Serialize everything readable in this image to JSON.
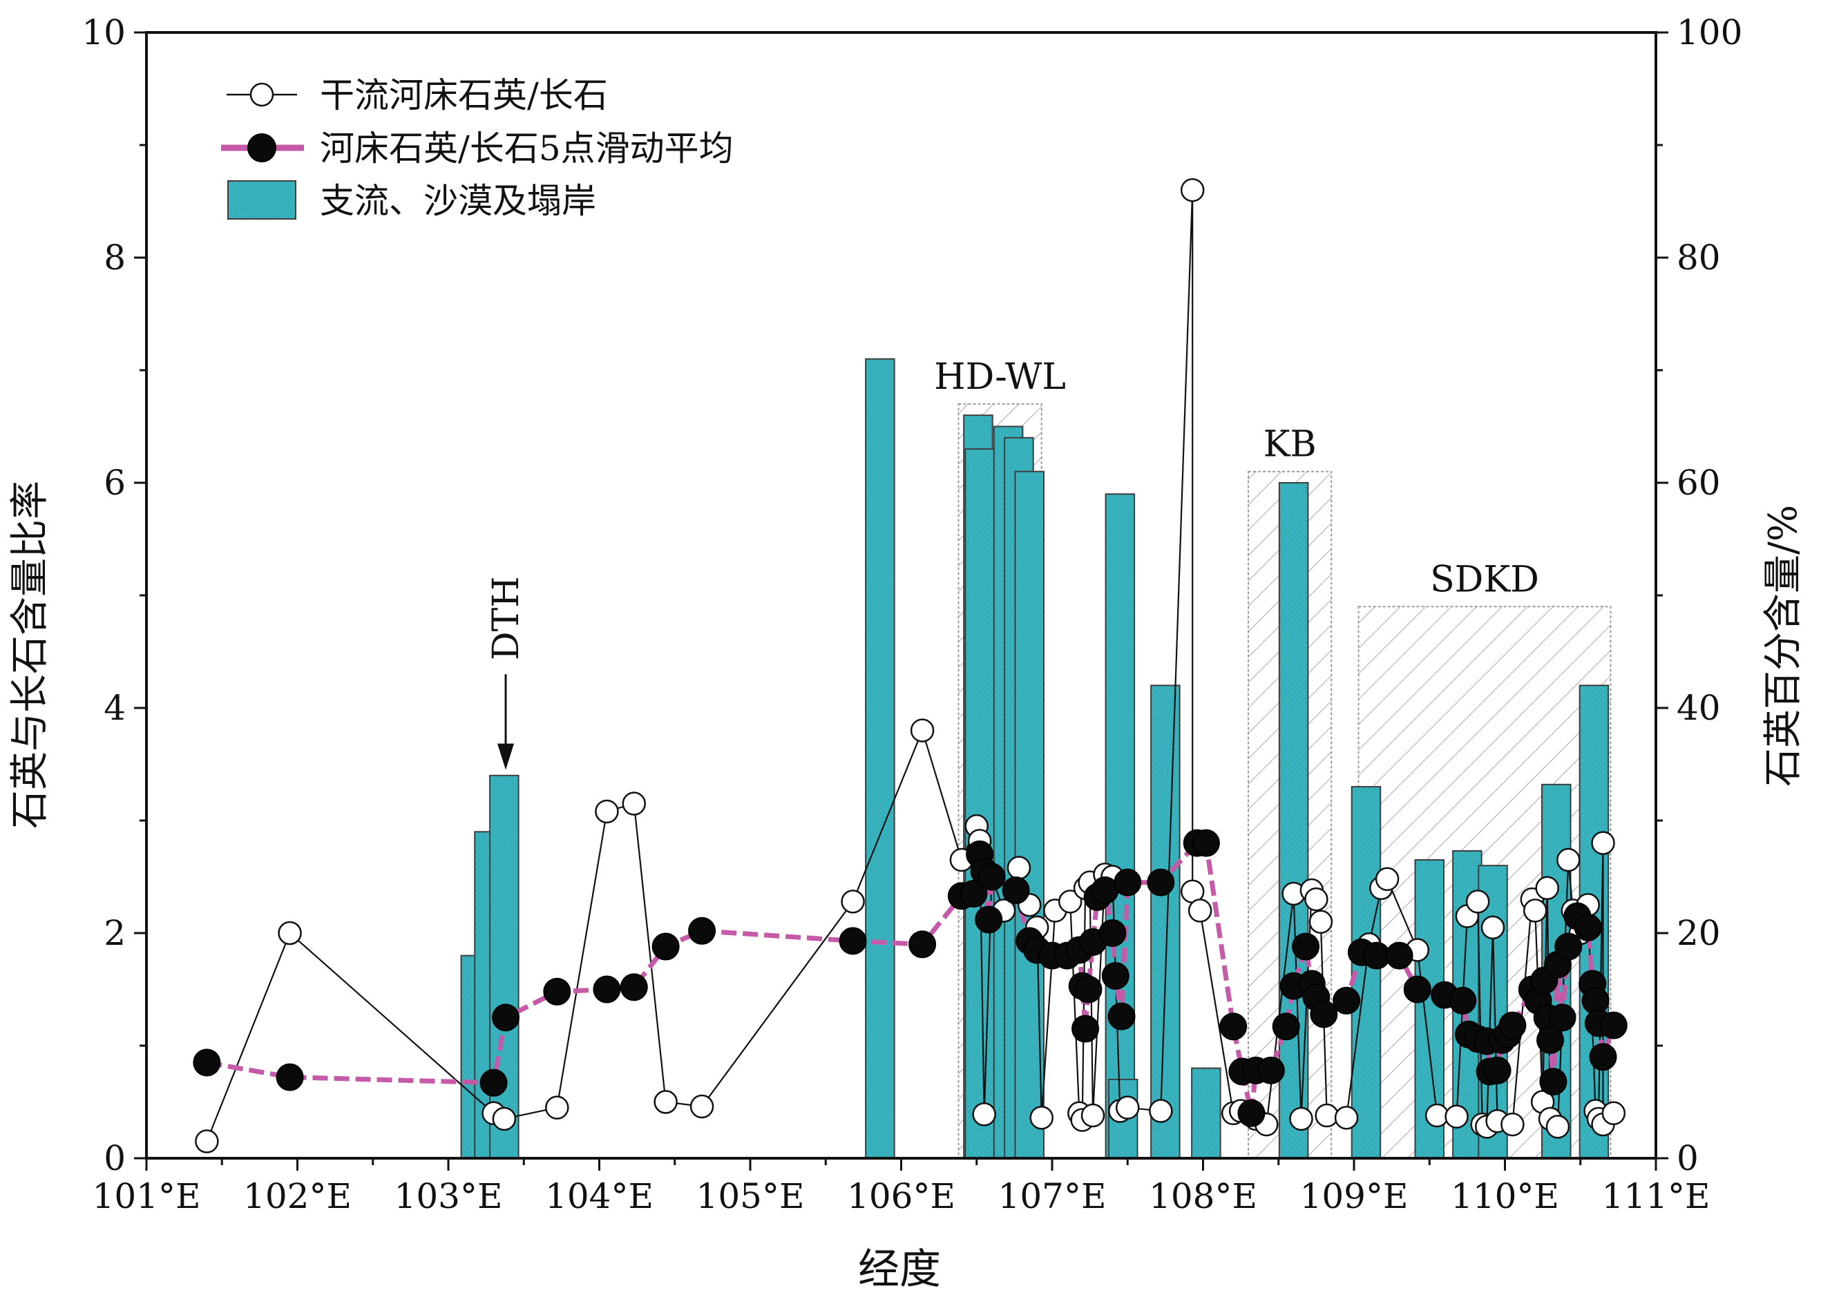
{
  "chart_data": {
    "type": "bar+line+scatter",
    "xlabel": "经度",
    "ylabel_left": "石英与长石含量比率",
    "ylabel_right": "石英百分含量/%",
    "xlim": [
      101,
      111
    ],
    "ylim_left": [
      0,
      10
    ],
    "ylim_right": [
      0,
      100
    ],
    "x_ticks": [
      101,
      102,
      103,
      104,
      105,
      106,
      107,
      108,
      109,
      110,
      111
    ],
    "x_tick_labels": [
      "101°E",
      "102°E",
      "103°E",
      "104°E",
      "105°E",
      "106°E",
      "107°E",
      "108°E",
      "109°E",
      "110°E",
      "111°E"
    ],
    "y_left_ticks": [
      0,
      2,
      4,
      6,
      8,
      10
    ],
    "y_left_tick_labels": [
      "0",
      "2",
      "4",
      "6",
      "8",
      "10"
    ],
    "y_right_ticks": [
      0,
      20,
      40,
      60,
      80,
      100
    ],
    "y_right_tick_labels": [
      "0",
      "20",
      "40",
      "60",
      "80",
      "100"
    ],
    "legend": {
      "placement": "top-left",
      "items": [
        {
          "label": "干流河床石英/长石",
          "kind": "open-circle-line"
        },
        {
          "label": "河床石英/长石5点滑动平均",
          "kind": "filled-circle-magenta-line"
        },
        {
          "label": "支流、沙漠及塌岸",
          "kind": "teal-bar"
        }
      ]
    },
    "colors": {
      "bar_fill": "#38b3bd",
      "bar_edge": "#3d3d3d",
      "moving_avg_line": "#c45aa8",
      "marker_filled": "#0a0a0a",
      "marker_open_fill": "#ffffff",
      "marker_edge": "#111111",
      "zone_hatch": "#9a9a9a"
    },
    "bars": {
      "name": "支流、沙漠及塌岸",
      "axis": "right",
      "width_deg": 0.19,
      "items": [
        {
          "x": 103.18,
          "value": 18
        },
        {
          "x": 103.27,
          "value": 29
        },
        {
          "x": 103.37,
          "value": 34
        },
        {
          "x": 105.86,
          "value": 71
        },
        {
          "x": 106.51,
          "value": 66
        },
        {
          "x": 106.52,
          "value": 63
        },
        {
          "x": 106.71,
          "value": 65
        },
        {
          "x": 106.78,
          "value": 64
        },
        {
          "x": 106.85,
          "value": 61
        },
        {
          "x": 107.45,
          "value": 59
        },
        {
          "x": 107.47,
          "value": 7
        },
        {
          "x": 107.75,
          "value": 42
        },
        {
          "x": 108.02,
          "value": 8
        },
        {
          "x": 108.6,
          "value": 60
        },
        {
          "x": 109.08,
          "value": 33
        },
        {
          "x": 109.5,
          "value": 26.5
        },
        {
          "x": 109.75,
          "value": 27.3
        },
        {
          "x": 109.92,
          "value": 26
        },
        {
          "x": 110.34,
          "value": 33.2
        },
        {
          "x": 110.59,
          "value": 42
        }
      ]
    },
    "zones": [
      {
        "label": "HD-WL",
        "x0": 106.38,
        "x1": 106.93,
        "top": 6.7
      },
      {
        "label": "KB",
        "x0": 108.3,
        "x1": 108.85,
        "top": 6.1
      },
      {
        "label": "SDKD",
        "x0": 109.03,
        "x1": 110.7,
        "top": 4.9
      }
    ],
    "annotations": [
      {
        "label": "DTH",
        "x": 103.38,
        "y_arrow_tip": 3.45,
        "y_arrow_tail": 4.3
      }
    ],
    "series": [
      {
        "name": "干流河床石英/长石",
        "axis": "left",
        "marker": "open-circle",
        "points": [
          [
            101.4,
            0.15
          ],
          [
            101.95,
            2.0
          ],
          [
            103.3,
            0.4
          ],
          [
            103.37,
            0.35
          ],
          [
            103.72,
            0.45
          ],
          [
            104.05,
            3.08
          ],
          [
            104.23,
            3.15
          ],
          [
            104.44,
            0.5
          ],
          [
            104.68,
            0.46
          ],
          [
            105.68,
            2.28
          ],
          [
            106.14,
            3.8
          ],
          [
            106.4,
            2.65
          ],
          [
            106.5,
            2.95
          ],
          [
            106.52,
            2.82
          ],
          [
            106.55,
            0.39
          ],
          [
            106.6,
            2.5
          ],
          [
            106.68,
            2.2
          ],
          [
            106.78,
            2.58
          ],
          [
            106.85,
            2.25
          ],
          [
            106.9,
            2.05
          ],
          [
            106.93,
            0.36
          ],
          [
            107.02,
            2.2
          ],
          [
            107.12,
            2.28
          ],
          [
            107.18,
            0.4
          ],
          [
            107.2,
            0.34
          ],
          [
            107.22,
            2.4
          ],
          [
            107.25,
            2.45
          ],
          [
            107.27,
            0.38
          ],
          [
            107.35,
            2.52
          ],
          [
            107.4,
            2.5
          ],
          [
            107.45,
            0.42
          ],
          [
            107.5,
            0.45
          ],
          [
            107.72,
            0.42
          ],
          [
            107.93,
            8.6
          ],
          [
            107.93,
            2.37
          ],
          [
            107.98,
            2.2
          ],
          [
            108.2,
            0.4
          ],
          [
            108.25,
            0.42
          ],
          [
            108.35,
            0.35
          ],
          [
            108.42,
            0.3
          ],
          [
            108.6,
            2.35
          ],
          [
            108.65,
            0.35
          ],
          [
            108.72,
            2.38
          ],
          [
            108.75,
            2.3
          ],
          [
            108.78,
            2.1
          ],
          [
            108.82,
            0.38
          ],
          [
            108.95,
            0.36
          ],
          [
            109.1,
            1.9
          ],
          [
            109.18,
            2.4
          ],
          [
            109.22,
            2.48
          ],
          [
            109.42,
            1.85
          ],
          [
            109.55,
            0.38
          ],
          [
            109.68,
            0.37
          ],
          [
            109.75,
            2.15
          ],
          [
            109.82,
            2.28
          ],
          [
            109.85,
            0.3
          ],
          [
            109.88,
            0.28
          ],
          [
            109.92,
            2.05
          ],
          [
            109.95,
            0.33
          ],
          [
            110.05,
            0.3
          ],
          [
            110.18,
            2.3
          ],
          [
            110.2,
            2.2
          ],
          [
            110.25,
            0.5
          ],
          [
            110.28,
            2.4
          ],
          [
            110.3,
            0.35
          ],
          [
            110.35,
            0.28
          ],
          [
            110.42,
            2.65
          ],
          [
            110.45,
            2.2
          ],
          [
            110.5,
            2.0
          ],
          [
            110.55,
            2.25
          ],
          [
            110.6,
            0.42
          ],
          [
            110.62,
            0.35
          ],
          [
            110.65,
            2.8
          ],
          [
            110.65,
            0.3
          ],
          [
            110.72,
            0.4
          ]
        ]
      },
      {
        "name": "河床石英/长石5点滑动平均",
        "axis": "left",
        "marker": "filled-circle",
        "points": [
          [
            101.4,
            0.85
          ],
          [
            101.95,
            0.72
          ],
          [
            103.3,
            0.67
          ],
          [
            103.38,
            1.25
          ],
          [
            103.72,
            1.48
          ],
          [
            104.05,
            1.5
          ],
          [
            104.23,
            1.52
          ],
          [
            104.44,
            1.88
          ],
          [
            104.68,
            2.02
          ],
          [
            105.68,
            1.93
          ],
          [
            106.14,
            1.9
          ],
          [
            106.4,
            2.33
          ],
          [
            106.48,
            2.35
          ],
          [
            106.52,
            2.7
          ],
          [
            106.55,
            2.55
          ],
          [
            106.58,
            2.12
          ],
          [
            106.6,
            2.5
          ],
          [
            106.76,
            2.38
          ],
          [
            106.85,
            1.93
          ],
          [
            106.9,
            1.85
          ],
          [
            107.0,
            1.8
          ],
          [
            107.1,
            1.8
          ],
          [
            107.18,
            1.85
          ],
          [
            107.2,
            1.53
          ],
          [
            107.22,
            1.15
          ],
          [
            107.24,
            1.5
          ],
          [
            107.27,
            1.92
          ],
          [
            107.3,
            2.32
          ],
          [
            107.35,
            2.38
          ],
          [
            107.4,
            2.0
          ],
          [
            107.42,
            1.62
          ],
          [
            107.46,
            1.26
          ],
          [
            107.5,
            2.45
          ],
          [
            107.72,
            2.45
          ],
          [
            107.96,
            2.8
          ],
          [
            108.02,
            2.8
          ],
          [
            108.2,
            1.17
          ],
          [
            108.26,
            0.77
          ],
          [
            108.32,
            0.4
          ],
          [
            108.35,
            0.78
          ],
          [
            108.45,
            0.78
          ],
          [
            108.55,
            1.17
          ],
          [
            108.6,
            1.53
          ],
          [
            108.68,
            1.88
          ],
          [
            108.72,
            1.55
          ],
          [
            108.75,
            1.43
          ],
          [
            108.8,
            1.28
          ],
          [
            108.95,
            1.4
          ],
          [
            109.05,
            1.83
          ],
          [
            109.15,
            1.8
          ],
          [
            109.3,
            1.8
          ],
          [
            109.42,
            1.5
          ],
          [
            109.6,
            1.45
          ],
          [
            109.72,
            1.4
          ],
          [
            109.76,
            1.1
          ],
          [
            109.82,
            1.06
          ],
          [
            109.88,
            1.04
          ],
          [
            109.9,
            0.77
          ],
          [
            109.95,
            0.78
          ],
          [
            109.98,
            1.05
          ],
          [
            110.02,
            1.1
          ],
          [
            110.05,
            1.18
          ],
          [
            110.18,
            1.5
          ],
          [
            110.22,
            1.4
          ],
          [
            110.26,
            1.58
          ],
          [
            110.28,
            1.25
          ],
          [
            110.3,
            1.05
          ],
          [
            110.32,
            0.68
          ],
          [
            110.35,
            1.72
          ],
          [
            110.38,
            1.25
          ],
          [
            110.42,
            1.88
          ],
          [
            110.48,
            2.15
          ],
          [
            110.55,
            2.05
          ],
          [
            110.58,
            1.55
          ],
          [
            110.6,
            1.4
          ],
          [
            110.62,
            1.2
          ],
          [
            110.65,
            0.9
          ],
          [
            110.72,
            1.18
          ]
        ]
      }
    ]
  }
}
